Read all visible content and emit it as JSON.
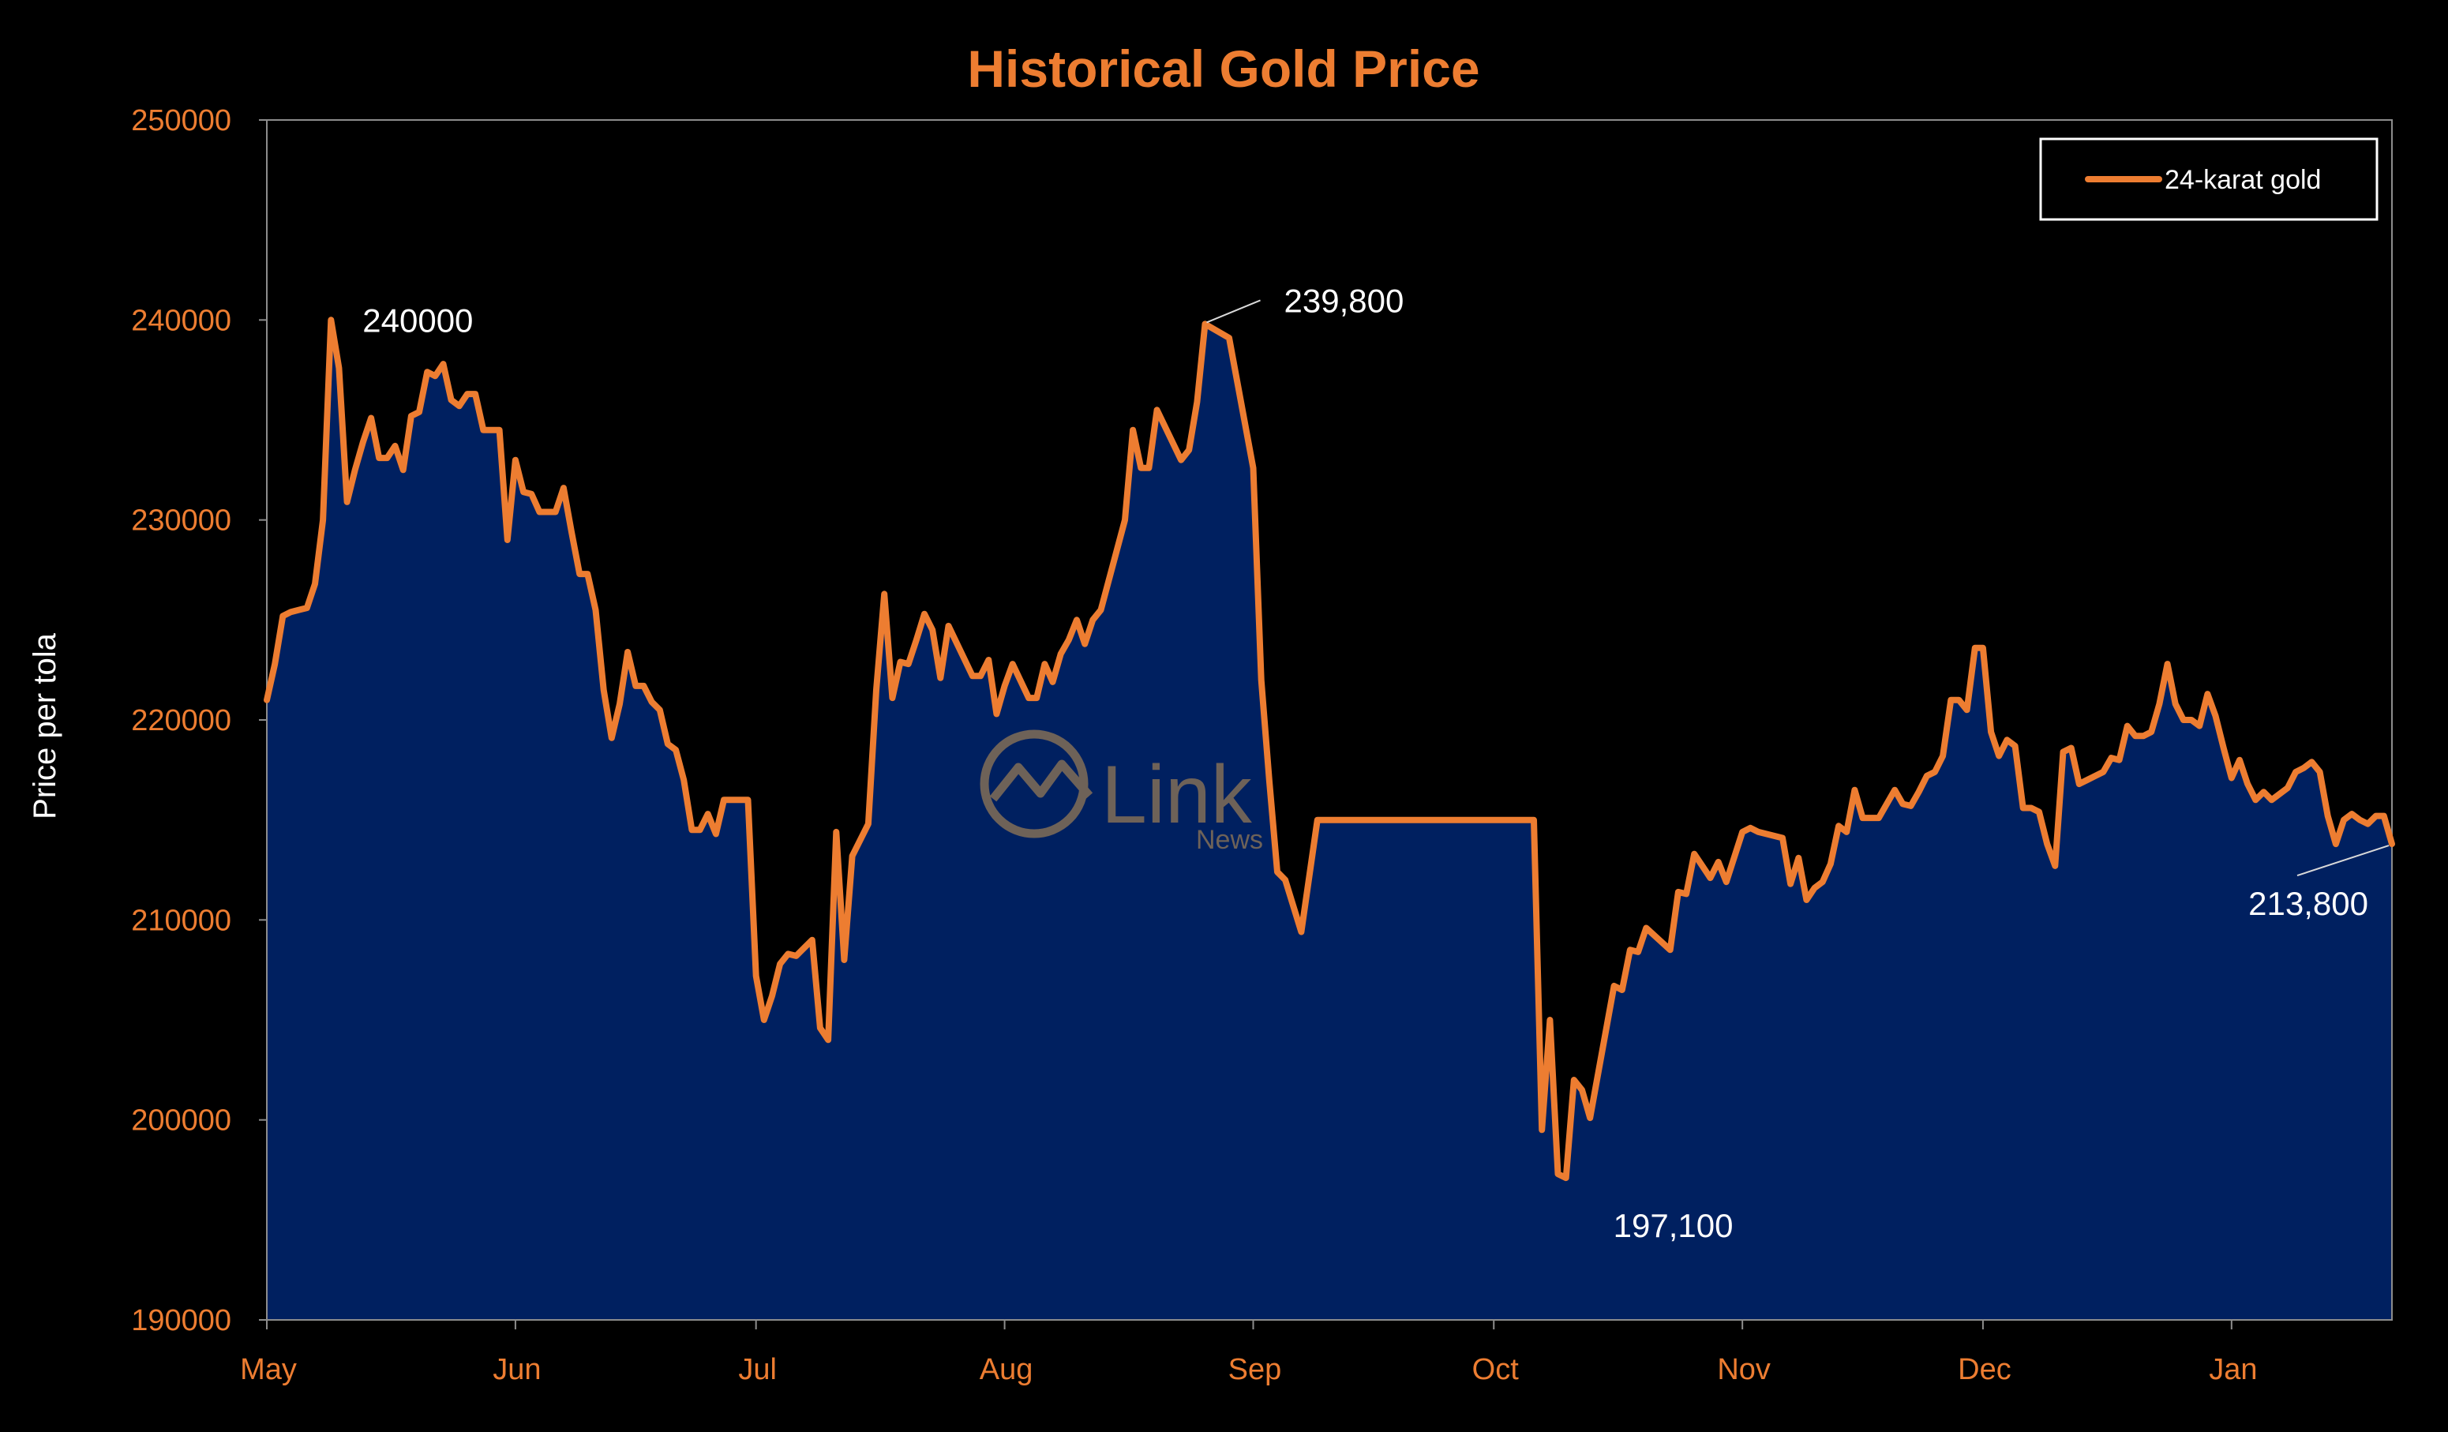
{
  "colors": {
    "background": "#000000",
    "accent": "#ED7D31",
    "fill": "#002060",
    "text_white": "#FFFFFF",
    "axis_gray": "#8C8C8C",
    "watermark": "#7A6A58"
  },
  "watermark": {
    "text": "Link",
    "sub": "News"
  },
  "chart_data": {
    "type": "area",
    "title": "Historical Gold Price",
    "xlabel": "",
    "ylabel": "Price per tola",
    "ylim": [
      190000,
      250000
    ],
    "yticks": [
      "190000",
      "200000",
      "210000",
      "220000",
      "230000",
      "240000",
      "250000"
    ],
    "xticks": [
      "May",
      "Jun",
      "Jul",
      "Aug",
      "Sep",
      "Oct",
      "Nov",
      "Dec",
      "Jan"
    ],
    "grid": false,
    "legend": {
      "position": "top-right"
    },
    "series": [
      {
        "name": "24-karat gold",
        "points": [
          [
            "May 1",
            221000
          ],
          [
            "May 2",
            222800
          ],
          [
            "May 3",
            225200
          ],
          [
            "May 4",
            225400
          ],
          [
            "May 6",
            225600
          ],
          [
            "May 7",
            226800
          ],
          [
            "May 8",
            230000
          ],
          [
            "May 9",
            240000
          ],
          [
            "May 10",
            237600
          ],
          [
            "May 11",
            230900
          ],
          [
            "May 12",
            232500
          ],
          [
            "May 13",
            233900
          ],
          [
            "May 14",
            235100
          ],
          [
            "May 15",
            233100
          ],
          [
            "May 16",
            233100
          ],
          [
            "May 17",
            233700
          ],
          [
            "May 18",
            232500
          ],
          [
            "May 19",
            235200
          ],
          [
            "May 20",
            235400
          ],
          [
            "May 21",
            237400
          ],
          [
            "May 22",
            237200
          ],
          [
            "May 23",
            237800
          ],
          [
            "May 24",
            236000
          ],
          [
            "May 25",
            235700
          ],
          [
            "May 26",
            236300
          ],
          [
            "May 27",
            236300
          ],
          [
            "May 28",
            234500
          ],
          [
            "May 30",
            234500
          ],
          [
            "May 31",
            229000
          ],
          [
            "Jun 1",
            233000
          ],
          [
            "Jun 2",
            231400
          ],
          [
            "Jun 3",
            231300
          ],
          [
            "Jun 4",
            230400
          ],
          [
            "Jun 6",
            230400
          ],
          [
            "Jun 7",
            231600
          ],
          [
            "Jun 8",
            229400
          ],
          [
            "Jun 9",
            227300
          ],
          [
            "Jun 10",
            227300
          ],
          [
            "Jun 11",
            225500
          ],
          [
            "Jun 12",
            221500
          ],
          [
            "Jun 13",
            219100
          ],
          [
            "Jun 14",
            220800
          ],
          [
            "Jun 15",
            223400
          ],
          [
            "Jun 16",
            221700
          ],
          [
            "Jun 17",
            221700
          ],
          [
            "Jun 18",
            220900
          ],
          [
            "Jun 19",
            220500
          ],
          [
            "Jun 20",
            218800
          ],
          [
            "Jun 21",
            218500
          ],
          [
            "Jun 22",
            217000
          ],
          [
            "Jun 23",
            214500
          ],
          [
            "Jun 24",
            214500
          ],
          [
            "Jun 25",
            215300
          ],
          [
            "Jun 26",
            214300
          ],
          [
            "Jun 27",
            216000
          ],
          [
            "Jun 30",
            216000
          ],
          [
            "Jul 1",
            207200
          ],
          [
            "Jul 2",
            205000
          ],
          [
            "Jul 3",
            206200
          ],
          [
            "Jul 4",
            207800
          ],
          [
            "Jul 5",
            208300
          ],
          [
            "Jul 6",
            208200
          ],
          [
            "Jul 7",
            208600
          ],
          [
            "Jul 8",
            209000
          ],
          [
            "Jul 9",
            204600
          ],
          [
            "Jul 10",
            204000
          ],
          [
            "Jul 11",
            214400
          ],
          [
            "Jul 12",
            208000
          ],
          [
            "Jul 13",
            213200
          ],
          [
            "Jul 15",
            214800
          ],
          [
            "Jul 16",
            221500
          ],
          [
            "Jul 17",
            226300
          ],
          [
            "Jul 18",
            221100
          ],
          [
            "Jul 19",
            222900
          ],
          [
            "Jul 20",
            222800
          ],
          [
            "Jul 21",
            224000
          ],
          [
            "Jul 22",
            225300
          ],
          [
            "Jul 23",
            224500
          ],
          [
            "Jul 24",
            222100
          ],
          [
            "Jul 25",
            224700
          ],
          [
            "Jul 28",
            222200
          ],
          [
            "Jul 29",
            222200
          ],
          [
            "Jul 30",
            223000
          ],
          [
            "Jul 31",
            220300
          ],
          [
            "Aug 1",
            221700
          ],
          [
            "Aug 2",
            222800
          ],
          [
            "Aug 4",
            221100
          ],
          [
            "Aug 5",
            221100
          ],
          [
            "Aug 6",
            222800
          ],
          [
            "Aug 7",
            221900
          ],
          [
            "Aug 8",
            223300
          ],
          [
            "Aug 9",
            224000
          ],
          [
            "Aug 10",
            225000
          ],
          [
            "Aug 11",
            223800
          ],
          [
            "Aug 12",
            225000
          ],
          [
            "Aug 13",
            225500
          ],
          [
            "Aug 16",
            230000
          ],
          [
            "Aug 17",
            234500
          ],
          [
            "Aug 18",
            232600
          ],
          [
            "Aug 19",
            232600
          ],
          [
            "Aug 20",
            235500
          ],
          [
            "Aug 23",
            233000
          ],
          [
            "Aug 24",
            233500
          ],
          [
            "Aug 25",
            235900
          ],
          [
            "Aug 26",
            239800
          ],
          [
            "Aug 29",
            239100
          ],
          [
            "Sep 1",
            232600
          ],
          [
            "Sep 2",
            222000
          ],
          [
            "Sep 3",
            217000
          ],
          [
            "Sep 4",
            212400
          ],
          [
            "Sep 5",
            212000
          ],
          [
            "Sep 7",
            209400
          ],
          [
            "Sep 9",
            215000
          ],
          [
            "Sep 30",
            215000
          ],
          [
            "Oct 1",
            215000
          ],
          [
            "Oct 6",
            215000
          ],
          [
            "Oct 7",
            199500
          ],
          [
            "Oct 8",
            205000
          ],
          [
            "Oct 9",
            197300
          ],
          [
            "Oct 10",
            197100
          ],
          [
            "Oct 11",
            202000
          ],
          [
            "Oct 12",
            201500
          ],
          [
            "Oct 13",
            200100
          ],
          [
            "Oct 16",
            206700
          ],
          [
            "Oct 17",
            206500
          ],
          [
            "Oct 18",
            208500
          ],
          [
            "Oct 19",
            208400
          ],
          [
            "Oct 20",
            209600
          ],
          [
            "Oct 23",
            208500
          ],
          [
            "Oct 24",
            211400
          ],
          [
            "Oct 25",
            211300
          ],
          [
            "Oct 26",
            213300
          ],
          [
            "Oct 27",
            212700
          ],
          [
            "Oct 28",
            212100
          ],
          [
            "Oct 29",
            212900
          ],
          [
            "Oct 30",
            211900
          ],
          [
            "Nov 1",
            214400
          ],
          [
            "Nov 2",
            214600
          ],
          [
            "Nov 3",
            214400
          ],
          [
            "Nov 6",
            214100
          ],
          [
            "Nov 7",
            211800
          ],
          [
            "Nov 8",
            213100
          ],
          [
            "Nov 9",
            211000
          ],
          [
            "Nov 10",
            211600
          ],
          [
            "Nov 11",
            211900
          ],
          [
            "Nov 12",
            212800
          ],
          [
            "Nov 13",
            214700
          ],
          [
            "Nov 14",
            214400
          ],
          [
            "Nov 15",
            216500
          ],
          [
            "Nov 16",
            215100
          ],
          [
            "Nov 17",
            215100
          ],
          [
            "Nov 18",
            215100
          ],
          [
            "Nov 20",
            216500
          ],
          [
            "Nov 21",
            215800
          ],
          [
            "Nov 22",
            215700
          ],
          [
            "Nov 23",
            216400
          ],
          [
            "Nov 24",
            217200
          ],
          [
            "Nov 25",
            217400
          ],
          [
            "Nov 26",
            218200
          ],
          [
            "Nov 27",
            221000
          ],
          [
            "Nov 28",
            221000
          ],
          [
            "Nov 29",
            220500
          ],
          [
            "Nov 30",
            223600
          ],
          [
            "Dec 1",
            223600
          ],
          [
            "Dec 2",
            219400
          ],
          [
            "Dec 3",
            218200
          ],
          [
            "Dec 4",
            219000
          ],
          [
            "Dec 5",
            218700
          ],
          [
            "Dec 6",
            215600
          ],
          [
            "Dec 7",
            215600
          ],
          [
            "Dec 8",
            215400
          ],
          [
            "Dec 9",
            213800
          ],
          [
            "Dec 10",
            212700
          ],
          [
            "Dec 11",
            218400
          ],
          [
            "Dec 12",
            218600
          ],
          [
            "Dec 13",
            216800
          ],
          [
            "Dec 14",
            217000
          ],
          [
            "Dec 15",
            217200
          ],
          [
            "Dec 16",
            217400
          ],
          [
            "Dec 17",
            218100
          ],
          [
            "Dec 18",
            218000
          ],
          [
            "Dec 19",
            219700
          ],
          [
            "Dec 20",
            219200
          ],
          [
            "Dec 21",
            219200
          ],
          [
            "Dec 22",
            219400
          ],
          [
            "Dec 23",
            220800
          ],
          [
            "Dec 24",
            222800
          ],
          [
            "Dec 25",
            220800
          ],
          [
            "Dec 26",
            220000
          ],
          [
            "Dec 27",
            220000
          ],
          [
            "Dec 28",
            219700
          ],
          [
            "Dec 29",
            221300
          ],
          [
            "Dec 30",
            220200
          ],
          [
            "Dec 31",
            218600
          ],
          [
            "Jan 1",
            217100
          ],
          [
            "Jan 2",
            218000
          ],
          [
            "Jan 3",
            216800
          ],
          [
            "Jan 4",
            216000
          ],
          [
            "Jan 5",
            216400
          ],
          [
            "Jan 6",
            216000
          ],
          [
            "Jan 8",
            216600
          ],
          [
            "Jan 9",
            217400
          ],
          [
            "Jan 10",
            217600
          ],
          [
            "Jan 11",
            217900
          ],
          [
            "Jan 12",
            217400
          ],
          [
            "Jan 13",
            215200
          ],
          [
            "Jan 14",
            213800
          ],
          [
            "Jan 15",
            215000
          ],
          [
            "Jan 16",
            215300
          ],
          [
            "Jan 17",
            215000
          ],
          [
            "Jan 18",
            214800
          ],
          [
            "Jan 19",
            215200
          ],
          [
            "Jan 20",
            215200
          ],
          [
            "Jan 21",
            213800
          ]
        ]
      }
    ],
    "annotations": [
      {
        "text": "240000",
        "x": "May 9",
        "y": 240000
      },
      {
        "text": "239,800",
        "x": "Aug 26",
        "y": 239800
      },
      {
        "text": "197,100",
        "x": "Oct 10",
        "y": 197100
      },
      {
        "text": "213,800",
        "x": "Jan 21",
        "y": 213800
      }
    ]
  }
}
